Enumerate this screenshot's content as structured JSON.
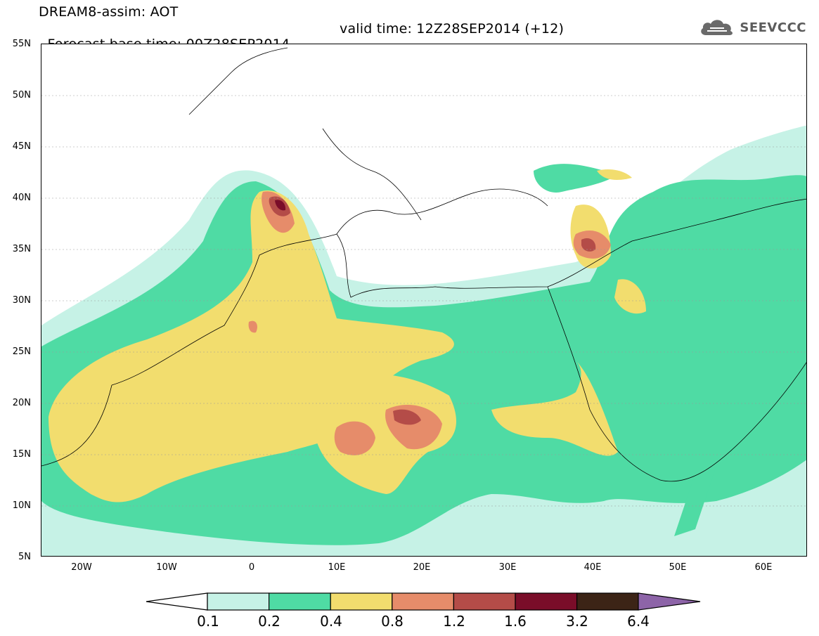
{
  "header": {
    "line1": "DREAM8-assim: AOT",
    "line2_base": "Forecast base time: 00Z28SEP2014",
    "line2_valid": "valid time: 12Z28SEP2014 (+12)",
    "logo_text": "SEEVCCC",
    "logo_icon": "cloud-icon"
  },
  "axes": {
    "y_ticks": [
      "55N",
      "50N",
      "45N",
      "40N",
      "35N",
      "30N",
      "25N",
      "20N",
      "15N",
      "10N",
      "5N"
    ],
    "x_ticks": [
      "20W",
      "10W",
      "0",
      "10E",
      "20E",
      "30E",
      "40E",
      "50E",
      "60E"
    ]
  },
  "colorbar": {
    "labels": [
      "0.1",
      "0.2",
      "0.4",
      "0.8",
      "1.2",
      "1.6",
      "3.2",
      "6.4"
    ],
    "colors": [
      "#c6f2e6",
      "#4fdba4",
      "#f2dd6e",
      "#e68c6a",
      "#b44c48",
      "#7a0d29",
      "#3c2416",
      "#8d64a8"
    ]
  },
  "map": {
    "lon_range": [
      -25,
      65
    ],
    "lat_range": [
      5,
      55
    ],
    "field": "AOT"
  }
}
